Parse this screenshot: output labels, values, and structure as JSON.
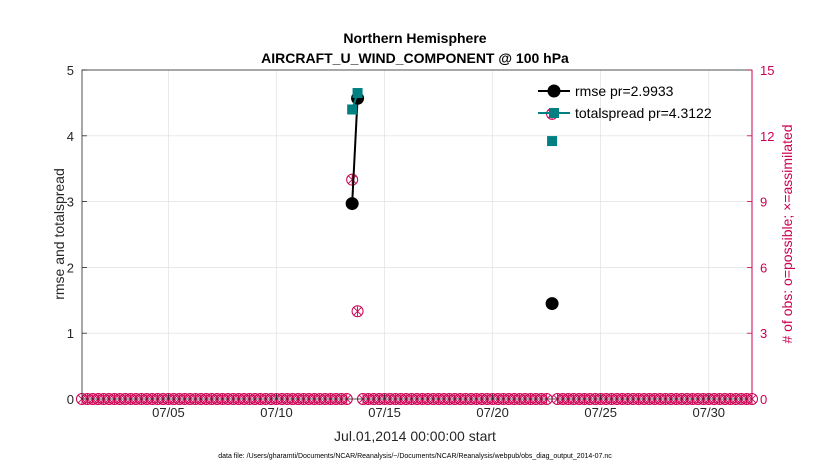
{
  "chart_data": {
    "type": "line",
    "title_line1": "Northern Hemisphere",
    "title_line2": "AIRCRAFT_U_WIND_COMPONENT @ 100 hPa",
    "xlabel": "Jul.01,2014 00:00:00 start",
    "ylabel_left": "rmse and totalspread",
    "ylabel_right": "# of obs: o=possible; ×=assimilated",
    "footnote": "data file: /Users/gharamti/Documents/NCAR/Reanalysis/~/Documents/NCAR/Reanalysis/webpub/obs_diag_output_2014-07.nc",
    "xlim": [
      1.0,
      32.0
    ],
    "x_ticks": [
      {
        "value": 5,
        "label": "07/05"
      },
      {
        "value": 10,
        "label": "07/10"
      },
      {
        "value": 15,
        "label": "07/15"
      },
      {
        "value": 20,
        "label": "07/20"
      },
      {
        "value": 25,
        "label": "07/25"
      },
      {
        "value": 30,
        "label": "07/30"
      }
    ],
    "ylim_left": [
      0,
      5
    ],
    "y_ticks_left": [
      "0",
      "1",
      "2",
      "3",
      "4",
      "5"
    ],
    "ylim_right": [
      0,
      15
    ],
    "y_ticks_right": [
      "0",
      "3",
      "6",
      "9",
      "12",
      "15"
    ],
    "grid": true,
    "legend_position": "top-right",
    "series": [
      {
        "name": "rmse",
        "legend_label": "rmse pr=2.9933",
        "color": "#000000",
        "marker": "circle",
        "points": [
          [
            13.5,
            2.97
          ],
          [
            13.75,
            4.57
          ]
        ],
        "isolated_points": [
          [
            22.75,
            1.45
          ]
        ]
      },
      {
        "name": "totalspread",
        "legend_label": "totalspread pr=4.3122",
        "color": "#008080",
        "marker": "square",
        "points": [
          [
            13.5,
            4.4
          ],
          [
            13.75,
            4.65
          ]
        ],
        "isolated_points": [
          [
            22.75,
            3.92
          ]
        ]
      }
    ],
    "obs_counts": {
      "axis": "right",
      "color": "#cc0052",
      "x_start": 1.0,
      "x_end": 32.0,
      "x_step": 0.25,
      "nonzero_points": [
        [
          13.5,
          10
        ],
        [
          13.75,
          4
        ],
        [
          22.75,
          13
        ]
      ]
    }
  }
}
